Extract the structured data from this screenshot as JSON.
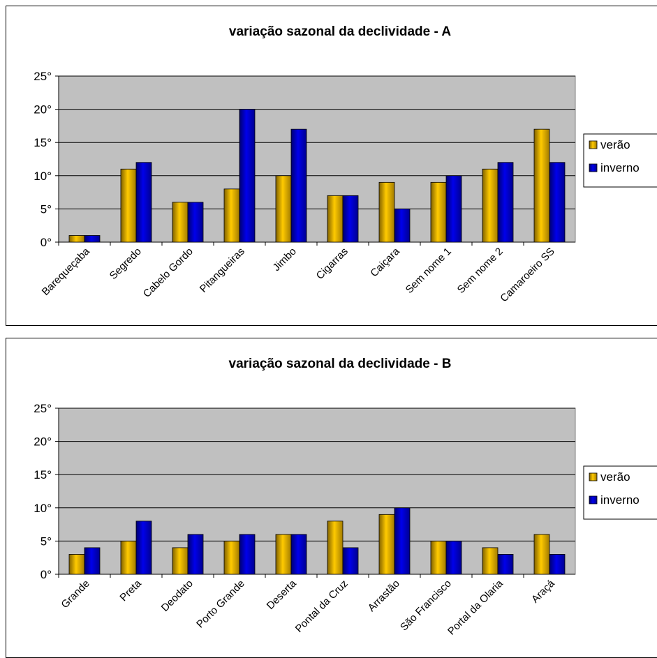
{
  "chart_data": [
    {
      "type": "bar",
      "title": "variação sazonal da declividade - A",
      "xlabel": "",
      "ylabel": "",
      "ylim": [
        0,
        25
      ],
      "yticks": [
        "0°",
        "5°",
        "10°",
        "15°",
        "20°",
        "25°"
      ],
      "grid": true,
      "legend_position": "right",
      "categories": [
        "Barequeçaba",
        "Segredo",
        "Cabelo Gordo",
        "Pitangueiras",
        "Jimbo",
        "Cigarras",
        "Caiçara",
        "Sem nome 1",
        "Sem nome 2",
        "Camaroeiro SS"
      ],
      "series": [
        {
          "name": "verão",
          "color": "#e8b000",
          "values": [
            1,
            11,
            6,
            8,
            10,
            7,
            9,
            9,
            11,
            17
          ]
        },
        {
          "name": "inverno",
          "color": "#0000cc",
          "values": [
            1,
            12,
            6,
            20,
            17,
            7,
            5,
            10,
            12,
            12
          ]
        }
      ]
    },
    {
      "type": "bar",
      "title": "variação sazonal da declividade - B",
      "xlabel": "",
      "ylabel": "",
      "ylim": [
        0,
        25
      ],
      "yticks": [
        "0°",
        "5°",
        "10°",
        "15°",
        "20°",
        "25°"
      ],
      "grid": true,
      "legend_position": "right",
      "categories": [
        "Grande",
        "Preta",
        "Deodato",
        "Porto Grande",
        "Deserta",
        "Pontal da Cruz",
        "Arrastão",
        "São Francisco",
        "Portal da Olaria",
        "Araçá"
      ],
      "series": [
        {
          "name": "verão",
          "color": "#e8b000",
          "values": [
            3,
            5,
            4,
            5,
            6,
            8,
            9,
            5,
            4,
            6
          ]
        },
        {
          "name": "inverno",
          "color": "#0000cc",
          "values": [
            4,
            8,
            6,
            6,
            6,
            4,
            10,
            5,
            3,
            3
          ]
        }
      ]
    }
  ],
  "colors": {
    "plot_background": "#c0c0c0",
    "gridline": "#000000",
    "verao": "#e8b000",
    "inverno": "#0000cc"
  }
}
